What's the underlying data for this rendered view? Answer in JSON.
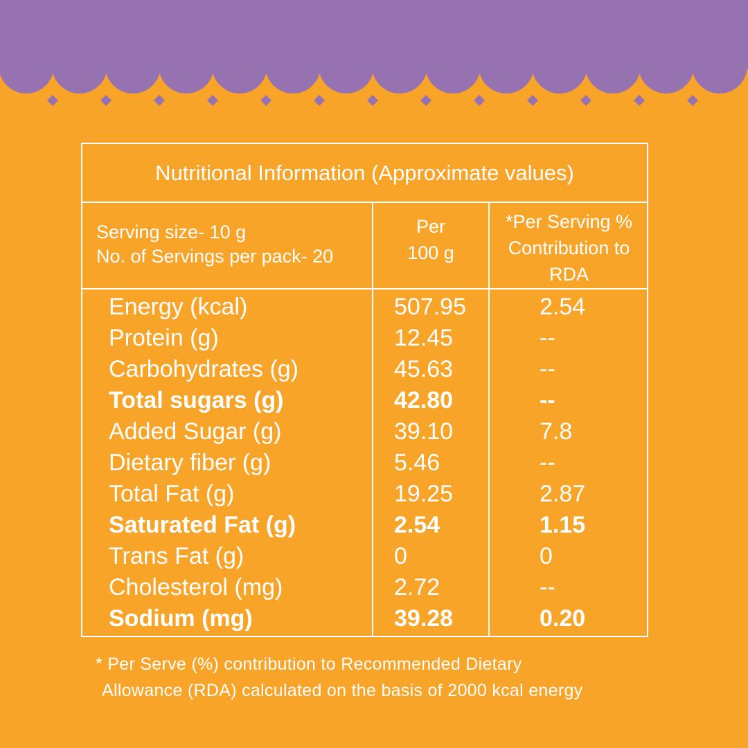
{
  "colors": {
    "background": "#F7A428",
    "band": "#9672B1",
    "text": "#FFFFFF"
  },
  "table": {
    "title": "Nutritional Information (Approximate values)",
    "serving_size": "Serving size- 10 g",
    "servings_per_pack": "No. of Servings per pack- 20",
    "col_per_line1": "Per",
    "col_per_line2": "100 g",
    "col_rda_line1": "*Per Serving %",
    "col_rda_line2": "Contribution to",
    "col_rda_line3": "RDA",
    "rows": [
      {
        "label": "Energy (kcal)",
        "per100": "507.95",
        "rda": "2.54",
        "bold": false
      },
      {
        "label": "Protein (g)",
        "per100": "12.45",
        "rda": "--",
        "bold": false
      },
      {
        "label": "Carbohydrates (g)",
        "per100": "45.63",
        "rda": "--",
        "bold": false
      },
      {
        "label": "Total sugars (g)",
        "per100": "42.80",
        "rda": "--",
        "bold": true
      },
      {
        "label": "Added Sugar (g)",
        "per100": "39.10",
        "rda": "7.8",
        "bold": false
      },
      {
        "label": "Dietary fiber (g)",
        "per100": "5.46",
        "rda": "--",
        "bold": false
      },
      {
        "label": "Total Fat (g)",
        "per100": "19.25",
        "rda": "2.87",
        "bold": false
      },
      {
        "label": "Saturated Fat (g)",
        "per100": "2.54",
        "rda": "1.15",
        "bold": true
      },
      {
        "label": "Trans Fat (g)",
        "per100": "0",
        "rda": "0",
        "bold": false
      },
      {
        "label": "Cholesterol (mg)",
        "per100": "2.72",
        "rda": "--",
        "bold": false
      },
      {
        "label": "Sodium (mg)",
        "per100": "39.28",
        "rda": "0.20",
        "bold": true
      }
    ]
  },
  "footnote": {
    "line1": "* Per Serve (%) contribution to Recommended Dietary",
    "line2": "Allowance (RDA) calculated on the basis of 2000 kcal energy"
  }
}
